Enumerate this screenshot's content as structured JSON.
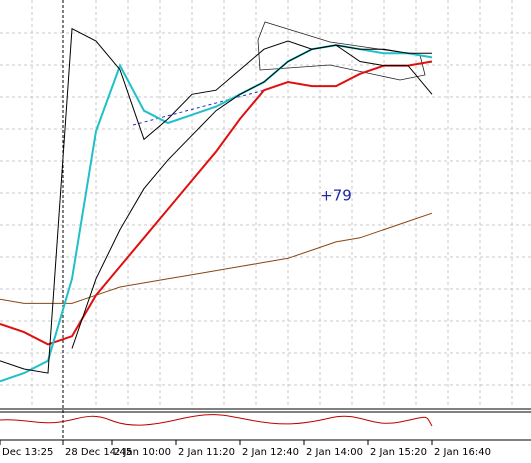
{
  "chart_data": {
    "type": "line",
    "annotation": "+79",
    "xtick_labels": [
      "Dec 13:25",
      "28 Dec 14:45",
      "2 Jan 10:00",
      "2 Jan 11:20",
      "2 Jan 12:40",
      "2 Jan 14:00",
      "2 Jan 15:20",
      "2 Jan 16:40"
    ],
    "x": [
      0,
      1,
      2,
      3,
      4,
      5,
      6,
      7,
      8,
      9,
      10,
      11,
      12,
      13,
      14,
      15,
      16,
      17,
      18
    ],
    "xlim": [
      0,
      18
    ],
    "ylim": [
      0,
      100
    ],
    "series": [
      {
        "color": "#8b4513",
        "values": [
          27,
          26,
          26,
          26,
          28,
          30,
          31,
          32,
          33,
          34,
          35,
          36,
          37,
          39,
          41,
          42,
          44,
          46,
          48
        ]
      },
      {
        "color": "#e01010",
        "values": [
          21,
          19,
          16,
          18,
          28,
          35,
          42,
          49,
          56,
          63,
          71,
          78,
          80,
          79,
          79,
          82,
          84,
          84,
          85
        ]
      },
      {
        "color": "#20c0c8",
        "values": [
          7,
          9,
          12,
          32,
          68,
          84,
          73,
          70,
          72,
          74,
          77,
          80,
          85,
          88,
          89,
          88,
          87,
          87,
          86
        ]
      },
      {
        "color": "#000000",
        "values": [
          null,
          null,
          null,
          15,
          32,
          44,
          54,
          61,
          67,
          73,
          77,
          80,
          85,
          88,
          89,
          88,
          88,
          87,
          87
        ]
      },
      {
        "color": "#000000",
        "values": [
          12,
          10,
          9,
          93,
          90,
          83,
          66,
          71,
          77,
          78,
          83,
          88,
          90,
          88,
          89,
          85,
          84,
          84,
          77
        ]
      }
    ]
  }
}
